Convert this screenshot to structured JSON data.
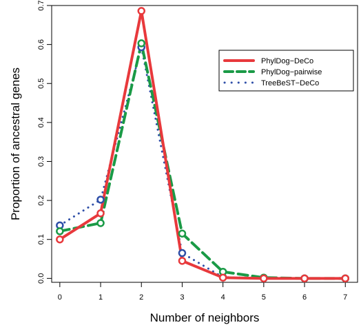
{
  "chart_data": {
    "type": "line",
    "xlabel": "Number of neighbors",
    "ylabel": "Proportion of ancestral genes",
    "x": [
      0,
      1,
      2,
      3,
      4,
      5,
      6,
      7
    ],
    "xlim": [
      -0.2,
      7.3
    ],
    "ylim": [
      -0.01,
      0.7
    ],
    "x_ticks": [
      0,
      1,
      2,
      3,
      4,
      5,
      6,
      7
    ],
    "y_ticks": [
      0.0,
      0.1,
      0.2,
      0.3,
      0.4,
      0.5,
      0.6,
      0.7
    ],
    "y_tick_labels": [
      "0.0",
      "0.1",
      "0.2",
      "0.3",
      "0.4",
      "0.5",
      "0.6",
      "0.7"
    ],
    "grid": false,
    "legend_position": "top-right",
    "series": [
      {
        "name": "TreeBeST−DeCo",
        "color": "#2f4fa8",
        "style": "dotted",
        "values": [
          0.136,
          0.202,
          0.593,
          0.065,
          0.003,
          0.001,
          0.0,
          0.0
        ]
      },
      {
        "name": "PhylDog−pairwise",
        "color": "#1a9a46",
        "style": "dashed",
        "values": [
          0.121,
          0.142,
          0.603,
          0.115,
          0.017,
          0.002,
          0.0,
          0.0
        ]
      },
      {
        "name": "PhylDog−DeCo",
        "color": "#e8393c",
        "style": "solid",
        "values": [
          0.1,
          0.167,
          0.686,
          0.045,
          0.002,
          0.0,
          0.0,
          0.0
        ]
      }
    ],
    "legend_order": [
      2,
      1,
      0
    ]
  }
}
